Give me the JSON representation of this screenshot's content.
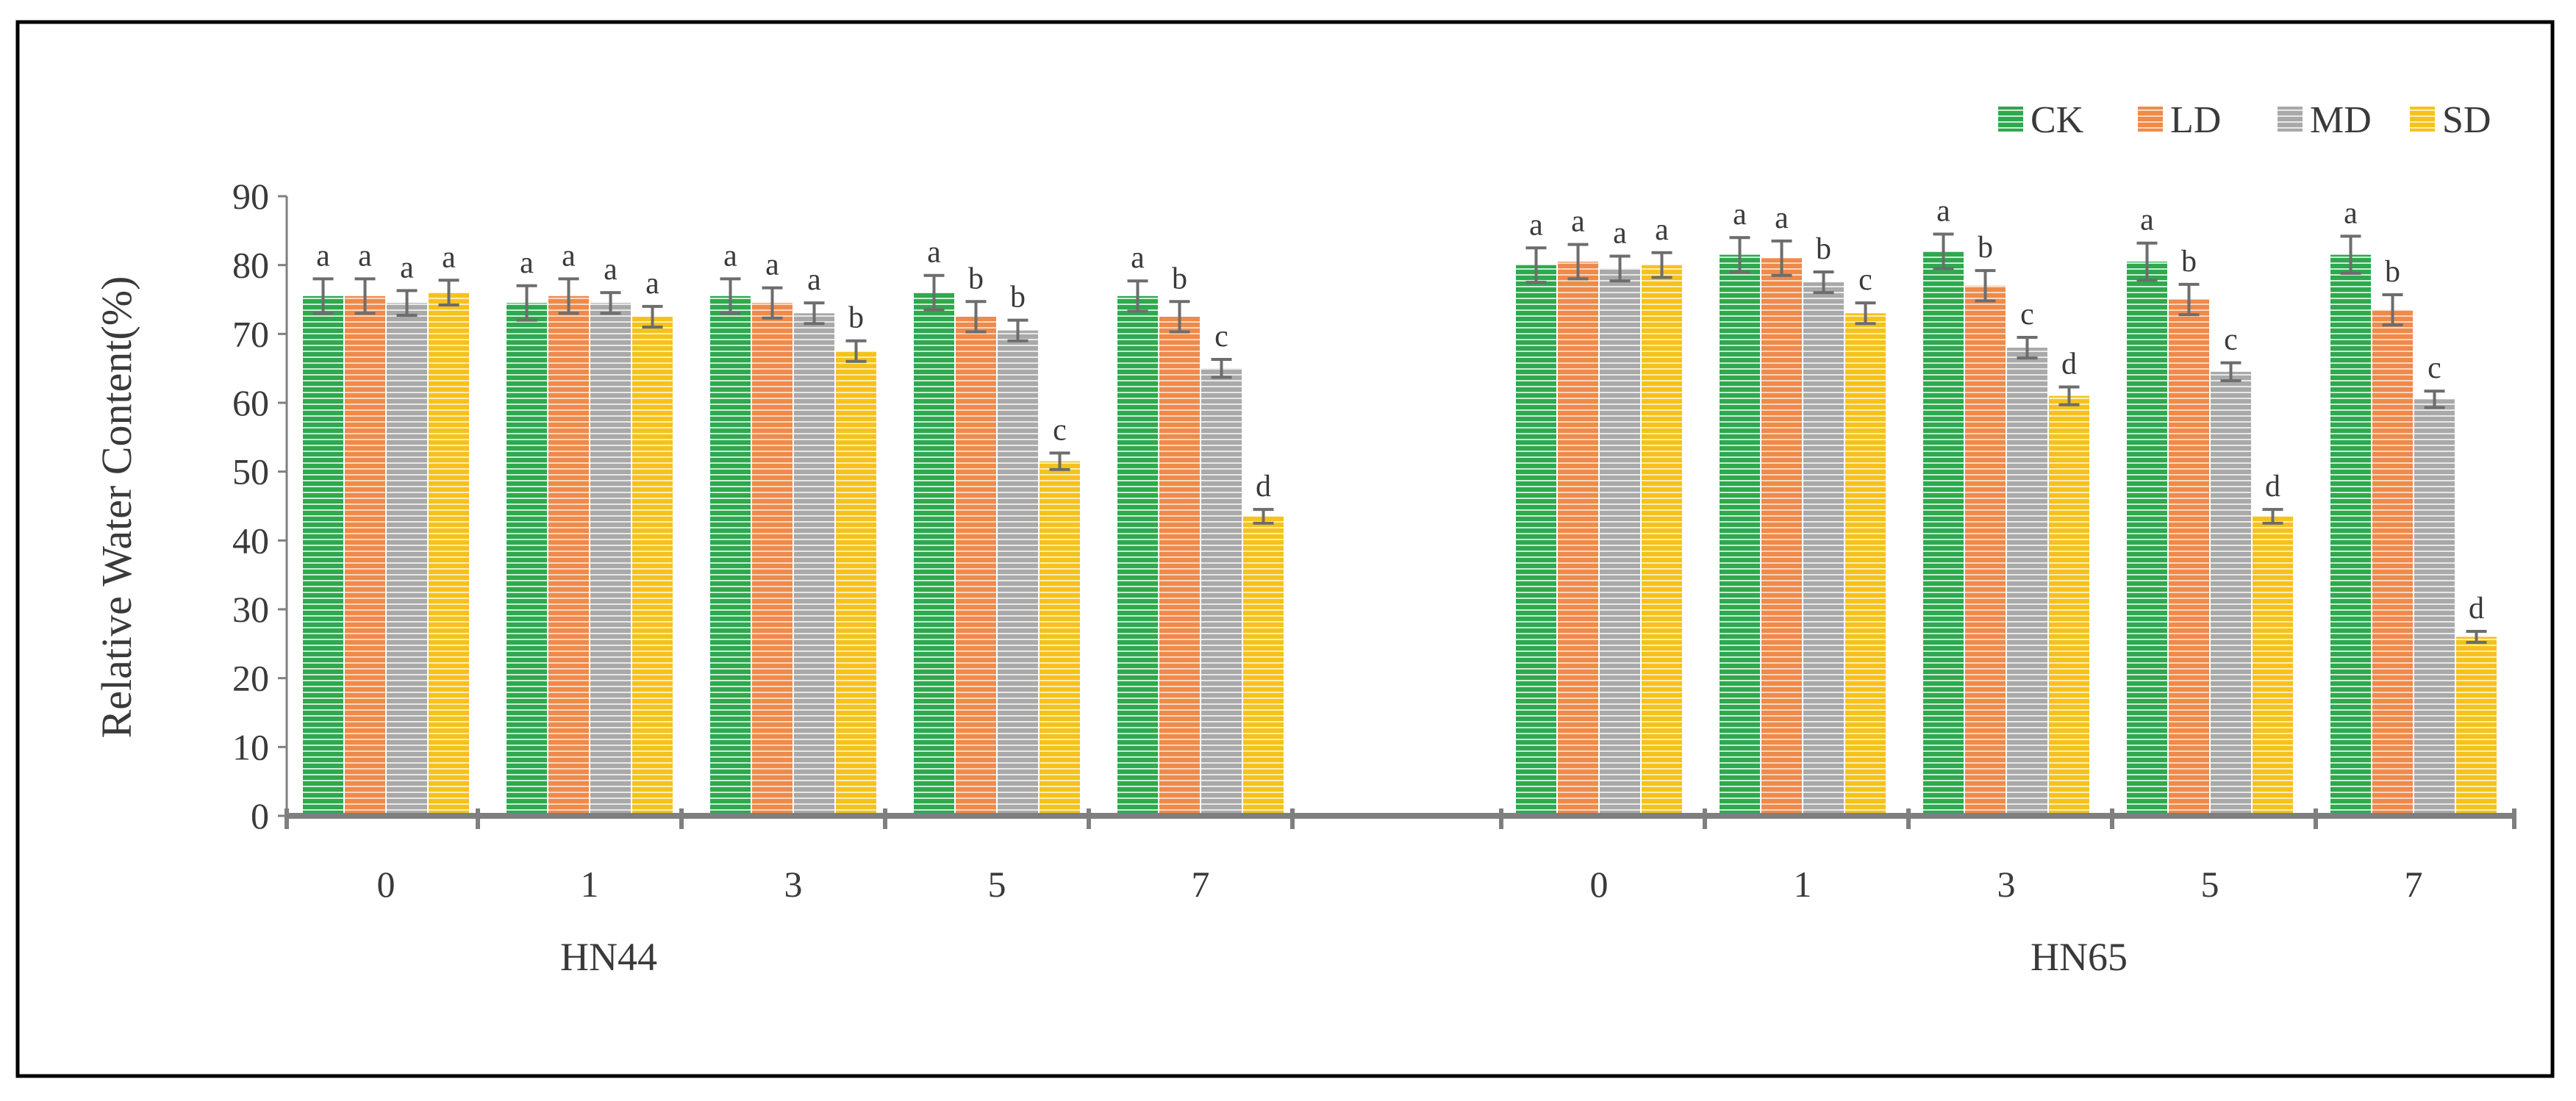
{
  "chart_data": {
    "type": "bar",
    "xlabel": "",
    "ylabel": "Relative Water Content(%)",
    "ylim": [
      0,
      90
    ],
    "yticks": [
      0,
      10,
      20,
      30,
      40,
      50,
      60,
      70,
      80,
      90
    ],
    "grid": false,
    "legend_position": "top-right",
    "group_labels": [
      "HN44",
      "HN65"
    ],
    "groups": [
      {
        "name": "HN44",
        "categories": [
          "0",
          "1",
          "3",
          "5",
          "7"
        ],
        "series": [
          {
            "name": "CK",
            "values": [
              75.5,
              74.5,
              75.5,
              76,
              75.5
            ],
            "errors": [
              2.5,
              2.5,
              2.5,
              2.5,
              2.2
            ],
            "letters": [
              "a",
              "a",
              "a",
              "a",
              "a"
            ]
          },
          {
            "name": "LD",
            "values": [
              75.5,
              75.5,
              74.5,
              72.5,
              72.5
            ],
            "errors": [
              2.5,
              2.5,
              2.2,
              2.2,
              2.2
            ],
            "letters": [
              "a",
              "a",
              "a",
              "b",
              "b"
            ]
          },
          {
            "name": "MD",
            "values": [
              74.5,
              74.5,
              73,
              70.5,
              65
            ],
            "errors": [
              1.8,
              1.5,
              1.5,
              1.5,
              1.3
            ],
            "letters": [
              "a",
              "a",
              "a",
              "b",
              "c"
            ]
          },
          {
            "name": "SD",
            "values": [
              76,
              72.5,
              67.5,
              51.5,
              43.5
            ],
            "errors": [
              1.8,
              1.5,
              1.5,
              1.2,
              1.0
            ],
            "letters": [
              "a",
              "a",
              "b",
              "c",
              "d"
            ]
          }
        ]
      },
      {
        "name": "HN65",
        "categories": [
          "0",
          "1",
          "3",
          "5",
          "7"
        ],
        "series": [
          {
            "name": "CK",
            "values": [
              80,
              81.5,
              82,
              80.5,
              81.5
            ],
            "errors": [
              2.5,
              2.5,
              2.5,
              2.7,
              2.7
            ],
            "letters": [
              "a",
              "a",
              "a",
              "a",
              "a"
            ]
          },
          {
            "name": "LD",
            "values": [
              80.5,
              81,
              77,
              75,
              73.5
            ],
            "errors": [
              2.5,
              2.5,
              2.2,
              2.2,
              2.2
            ],
            "letters": [
              "a",
              "a",
              "b",
              "b",
              "b"
            ]
          },
          {
            "name": "MD",
            "values": [
              79.5,
              77.5,
              68,
              64.5,
              60.5
            ],
            "errors": [
              1.8,
              1.5,
              1.5,
              1.3,
              1.2
            ],
            "letters": [
              "a",
              "b",
              "c",
              "c",
              "c"
            ]
          },
          {
            "name": "SD",
            "values": [
              80,
              73,
              61,
              43.5,
              26
            ],
            "errors": [
              1.8,
              1.5,
              1.3,
              1.0,
              0.8
            ],
            "letters": [
              "a",
              "c",
              "d",
              "d",
              "d"
            ]
          }
        ]
      }
    ],
    "colors": {
      "CK": "#2fa84f",
      "LD": "#ef8a4a",
      "MD": "#a9a9a9",
      "SD": "#f5c21d"
    },
    "stripe_colors": {
      "CK": "#c9efd3",
      "LD": "#fbd7bf",
      "MD": "#e8e8e8",
      "SD": "#fdeeb5"
    },
    "axis_color": "#7f7f7f",
    "errorbar_color": "#6d6d6d",
    "frame_color": "#000000"
  }
}
